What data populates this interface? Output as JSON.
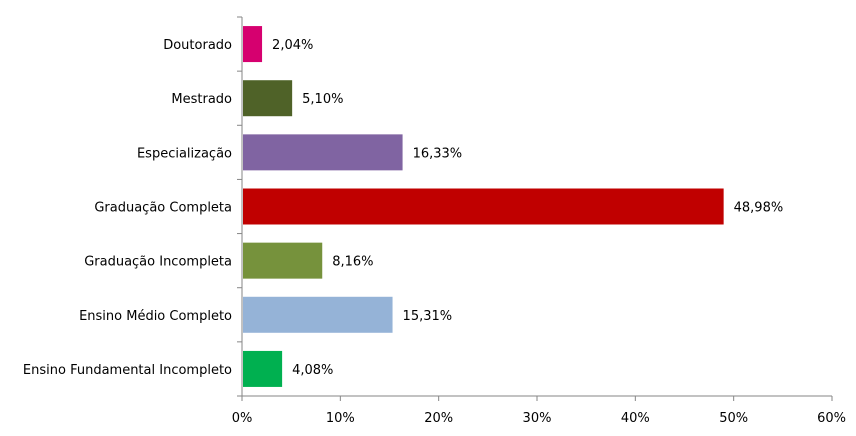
{
  "chart_data": {
    "type": "bar",
    "orientation": "horizontal",
    "categories": [
      "Doutorado",
      "Mestrado",
      "Especialização",
      "Graduação Completa",
      "Graduação Incompleta",
      "Ensino Médio Completo",
      "Ensino Fundamental Incompleto"
    ],
    "values": [
      2.04,
      5.1,
      16.33,
      48.98,
      8.16,
      15.31,
      4.08
    ],
    "value_labels": [
      "2,04%",
      "5,10%",
      "16,33%",
      "48,98%",
      "8,16%",
      "15,31%",
      "4,08%"
    ],
    "colors": [
      "#D6006F",
      "#4F6228",
      "#8064A2",
      "#C00000",
      "#76923C",
      "#95B3D7",
      "#00B050"
    ],
    "xlim": [
      0,
      60
    ],
    "xticks": [
      0,
      10,
      20,
      30,
      40,
      50,
      60
    ],
    "xtick_labels": [
      "0%",
      "10%",
      "20%",
      "30%",
      "40%",
      "50%",
      "60%"
    ],
    "title": "",
    "xlabel": "",
    "ylabel": "",
    "grid": false,
    "legend": "none"
  }
}
